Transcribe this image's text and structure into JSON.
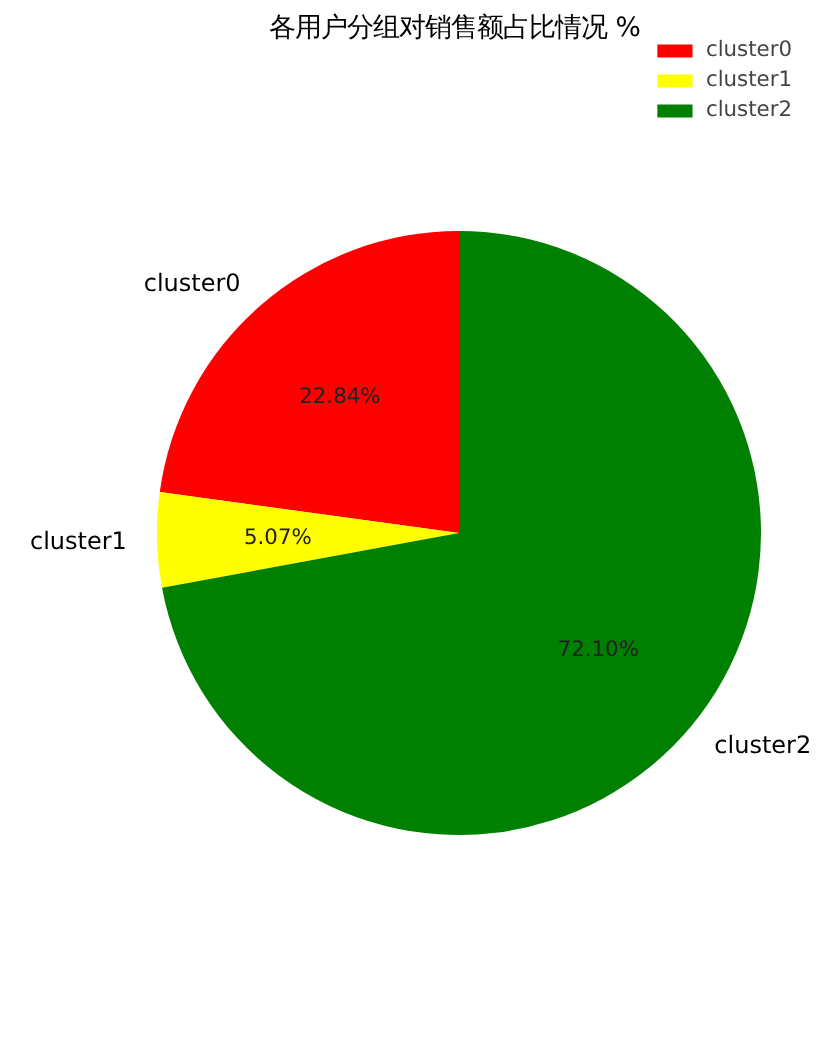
{
  "chart_data": {
    "type": "pie",
    "title": "各用户分组对销售额占比情况 %",
    "categories": [
      "cluster0",
      "cluster1",
      "cluster2"
    ],
    "values": [
      22.84,
      5.07,
      72.1
    ],
    "colors": [
      "#ff0000",
      "#ffff00",
      "#008000"
    ],
    "value_labels": [
      "22.84%",
      "5.07%",
      "72.10%"
    ],
    "legend": "top right"
  }
}
